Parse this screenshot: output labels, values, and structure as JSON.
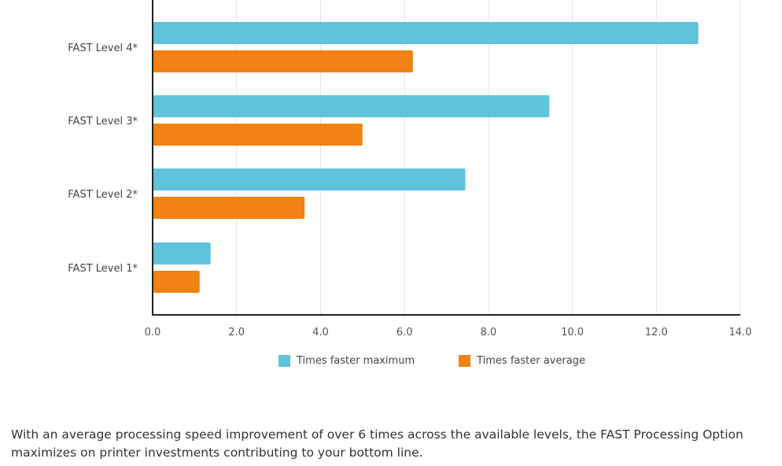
{
  "chart_data": {
    "type": "bar",
    "orientation": "horizontal",
    "categories": [
      "FAST Level 4*",
      "FAST Level 3*",
      "FAST Level 2*",
      "FAST Level 1*"
    ],
    "series": [
      {
        "name": "Times faster maximum",
        "color": "#5ec3db",
        "values": [
          13.0,
          9.45,
          7.45,
          1.38
        ]
      },
      {
        "name": "Times faster average",
        "color": "#f28213",
        "values": [
          6.2,
          5.0,
          3.62,
          1.12
        ]
      }
    ],
    "xlim": [
      0,
      14
    ],
    "xticks": [
      "0.0",
      "2.0",
      "4.0",
      "6.0",
      "8.0",
      "10.0",
      "12.0",
      "14.0"
    ],
    "grid": true,
    "legend_position": "bottom"
  },
  "caption": "With an average processing speed improvement of over 6 times across the available levels, the FAST Processing Option maximizes on printer investments contributing to your bottom line."
}
